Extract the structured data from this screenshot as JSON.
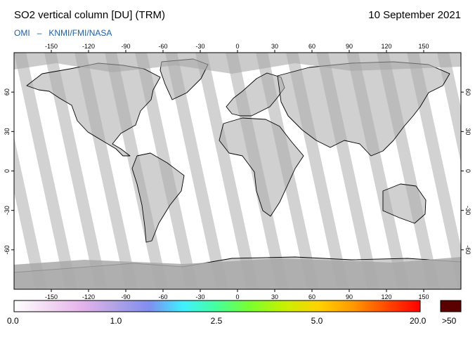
{
  "header": {
    "title": "SO2 vertical column [DU] (TRM)",
    "date": "10 September 2021",
    "credit_left": "OMI",
    "credit_sep": "–",
    "credit_right": "KNMI/FMI/NASA"
  },
  "map": {
    "projection": "equirectangular",
    "lon_range": [
      -180,
      180
    ],
    "lat_range": [
      -90,
      90
    ],
    "lon_ticks": [
      -150,
      -120,
      -90,
      -60,
      -30,
      0,
      30,
      60,
      90,
      120,
      150
    ],
    "lon_tick_labels": [
      "-150",
      "-120",
      "-90",
      "-60",
      "-30",
      "0",
      "30",
      "60",
      "90",
      "120",
      "150"
    ],
    "lat_ticks": [
      60,
      30,
      0,
      -30,
      -60
    ],
    "lat_tick_labels": [
      "60",
      "30",
      "0",
      "-30",
      "-60"
    ],
    "colors": {
      "no_data_gap": "#d2d2d2",
      "no_data_polar": "#a9a9a9",
      "land_outline": "#000000",
      "ocean": "#ffffff"
    }
  },
  "colorbar": {
    "labels": [
      "0.0",
      "1.0",
      "2.5",
      "5.0",
      "20.0"
    ],
    "overflow_label": ">50",
    "overflow_color": "#5a0000",
    "stops": [
      "#ffffff",
      "#f2d9f2",
      "#e6b3ec",
      "#b1a2e6",
      "#7f8ef0",
      "#3ff0ff",
      "#46ff9a",
      "#7bff2c",
      "#c8f000",
      "#ffd200",
      "#ff9a00",
      "#ff4a00",
      "#ff0000"
    ]
  }
}
